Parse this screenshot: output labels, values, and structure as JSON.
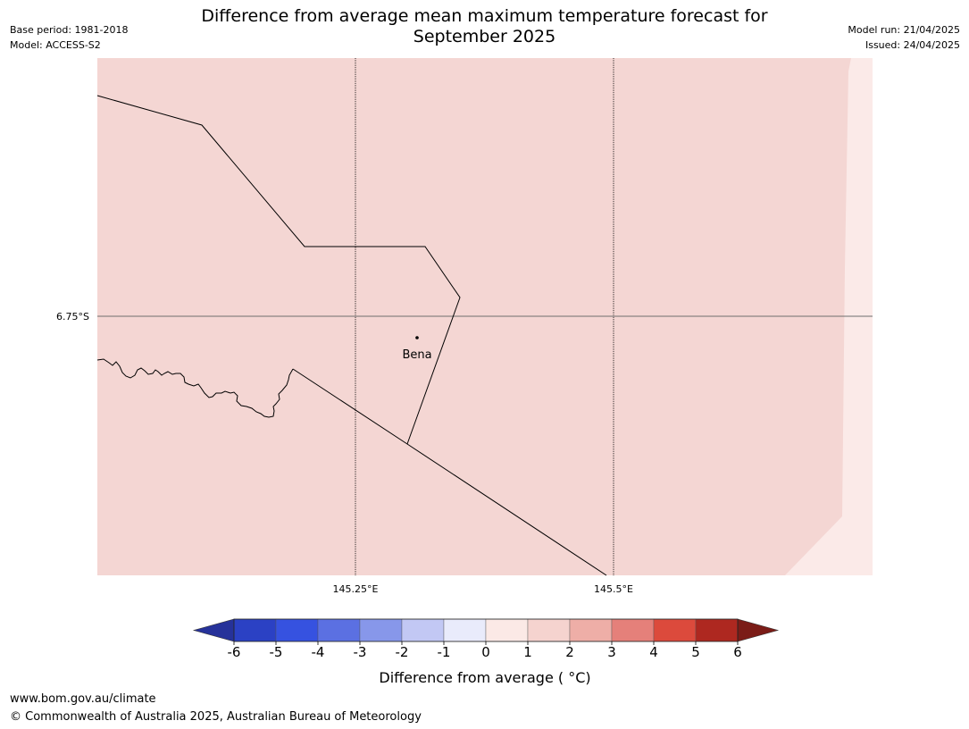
{
  "header": {
    "title_line1": "Difference from average mean maximum temperature forecast for",
    "title_line2": "September 2025",
    "base_period": "Base period: 1981-2018",
    "model": "Model: ACCESS-S2",
    "model_run": "Model run: 21/04/2025",
    "issued": "Issued: 24/04/2025"
  },
  "map": {
    "lat_label": "6.75°S",
    "lon_labels": [
      "145.25°E",
      "145.5°E"
    ],
    "place": "Bena",
    "fill_colors": {
      "main": "#f4d6d3",
      "edge": "#fbeae8"
    }
  },
  "colorbar": {
    "ticks": [
      "-6",
      "-5",
      "-4",
      "-3",
      "-2",
      "-1",
      "0",
      "1",
      "2",
      "3",
      "4",
      "5",
      "6"
    ],
    "colors": [
      "#26329a",
      "#2b41c4",
      "#3652e0",
      "#5b70e2",
      "#8797ea",
      "#c2c8f4",
      "#e9ebfb",
      "#fbe9e6",
      "#f5d3cf",
      "#eeaea7",
      "#e5807a",
      "#dc4a3c",
      "#ae2820",
      "#7b1c17"
    ],
    "label": "Difference from average ( °C)"
  },
  "footer": {
    "url": "www.bom.gov.au/climate",
    "copyright": "© Commonwealth of Australia 2025, Australian Bureau of Meteorology"
  }
}
